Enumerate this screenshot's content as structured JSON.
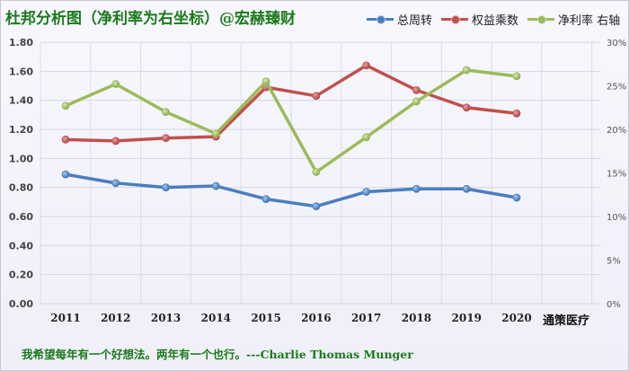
{
  "title": "杜邦分析图（净利率为右坐标）@宏赫臻财",
  "brand": "通策医疗",
  "quote": "我希望每年有一个好想法。两年有一个也行。---Charlie Thomas  Munger",
  "chart_data": {
    "type": "line",
    "categories": [
      "2011",
      "2012",
      "2013",
      "2014",
      "2015",
      "2016",
      "2017",
      "2018",
      "2019",
      "2020"
    ],
    "left_axis": {
      "min": 0,
      "max": 1.8,
      "ticks": [
        "0.00",
        "0.20",
        "0.40",
        "0.60",
        "0.80",
        "1.00",
        "1.20",
        "1.40",
        "1.60",
        "1.80"
      ]
    },
    "right_axis": {
      "min": 0,
      "max": 30,
      "ticks": [
        "0%",
        "5%",
        "10%",
        "15%",
        "20%",
        "25%",
        "30%"
      ]
    },
    "grid": true,
    "legend_position": "top-right",
    "series": [
      {
        "name": "总周转",
        "axis": "left",
        "color": "#4a7ebf",
        "values": [
          0.89,
          0.83,
          0.8,
          0.81,
          0.72,
          0.67,
          0.77,
          0.79,
          0.79,
          0.73
        ]
      },
      {
        "name": "权益乘数",
        "axis": "left",
        "color": "#c0504d",
        "values": [
          1.13,
          1.12,
          1.14,
          1.15,
          1.49,
          1.43,
          1.64,
          1.47,
          1.35,
          1.31
        ]
      },
      {
        "name": "净利率 右轴",
        "axis": "right",
        "color": "#9bbb59",
        "values": [
          22.7,
          25.2,
          22.0,
          19.5,
          25.5,
          15.1,
          19.1,
          23.2,
          26.8,
          26.1
        ]
      }
    ]
  }
}
